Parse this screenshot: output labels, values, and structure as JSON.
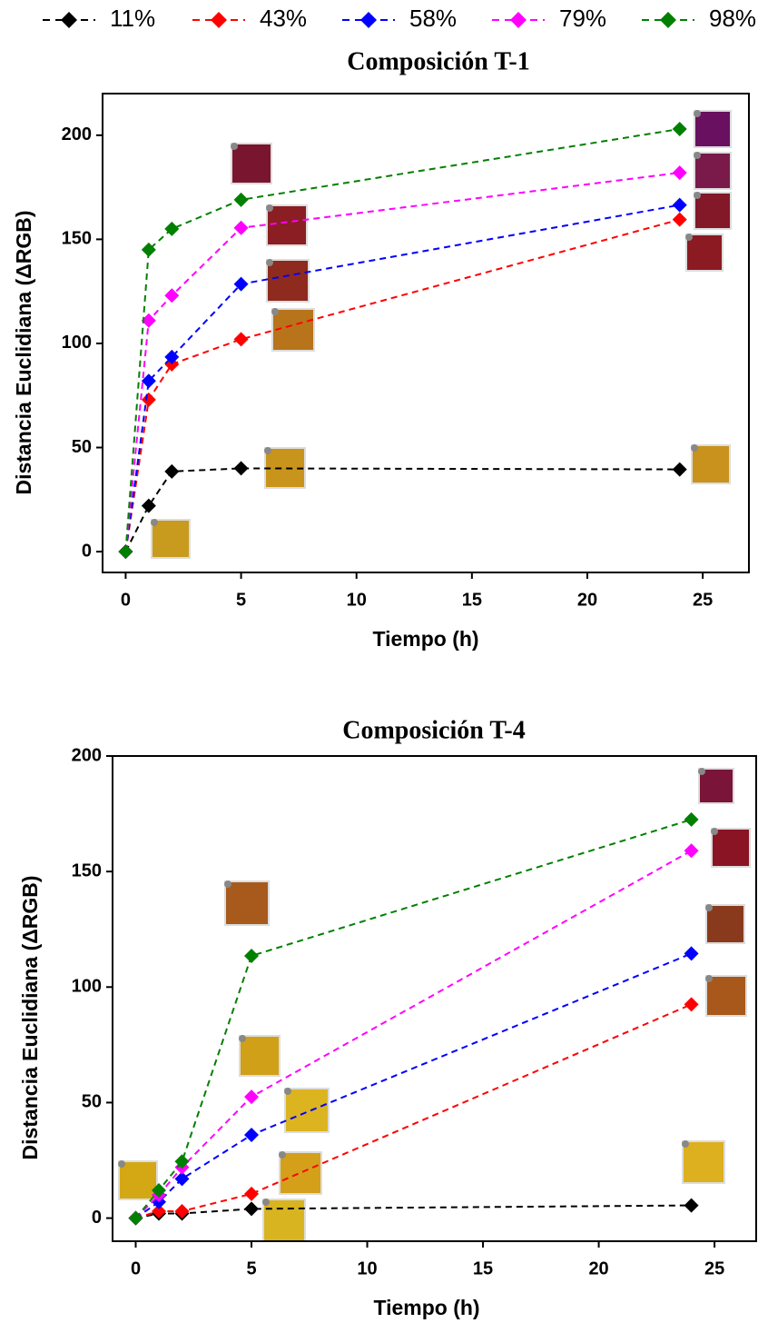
{
  "chart_data": [
    {
      "type": "line",
      "title": "Composición T-1",
      "x_label": "Tiempo (h)",
      "y_label": "Distancia Euclidiana (ΔRGB)",
      "x": [
        0,
        1,
        2,
        5,
        24
      ],
      "series": [
        {
          "name": "11%",
          "color": "#000000",
          "values": [
            0,
            22,
            38.5,
            40,
            39.5
          ]
        },
        {
          "name": "43%",
          "color": "#ff0000",
          "values": [
            0,
            73,
            90,
            102,
            159.5
          ]
        },
        {
          "name": "58%",
          "color": "#0000ff",
          "values": [
            0,
            82,
            93.5,
            128.5,
            166.5
          ]
        },
        {
          "name": "79%",
          "color": "#ff00ff",
          "values": [
            0,
            111,
            123,
            155.5,
            182
          ]
        },
        {
          "name": "98%",
          "color": "#008000",
          "values": [
            0,
            145,
            155,
            169,
            203
          ]
        }
      ],
      "xlim": [
        -1,
        27
      ],
      "ylim": [
        -10,
        220
      ],
      "xticks": [
        0,
        5,
        10,
        15,
        20,
        25
      ],
      "yticks": [
        0,
        50,
        100,
        150,
        200
      ]
    },
    {
      "type": "line",
      "title": "Composición T-4",
      "x_label": "Tiempo (h)",
      "y_label": "Distancia Euclidiana (ΔRGB)",
      "x": [
        0,
        1,
        2,
        5,
        24
      ],
      "series": [
        {
          "color": "#000000",
          "values": [
            0,
            2,
            2,
            4,
            5.5
          ]
        },
        {
          "color": "#ff0000",
          "values": [
            0,
            3,
            3,
            10.5,
            92.5
          ]
        },
        {
          "color": "#0000ff",
          "values": [
            0,
            7,
            17,
            36,
            114.5
          ]
        },
        {
          "color": "#ff00ff",
          "values": [
            0,
            10,
            22,
            52.5,
            159
          ]
        },
        {
          "color": "#008000",
          "values": [
            0,
            12,
            24.5,
            113.5,
            172.5
          ]
        }
      ],
      "xlim": [
        -1,
        26.8
      ],
      "ylim": [
        -10,
        200
      ],
      "xticks": [
        0,
        5,
        10,
        15,
        20,
        25
      ],
      "yticks": [
        0,
        50,
        100,
        150,
        200
      ]
    }
  ]
}
